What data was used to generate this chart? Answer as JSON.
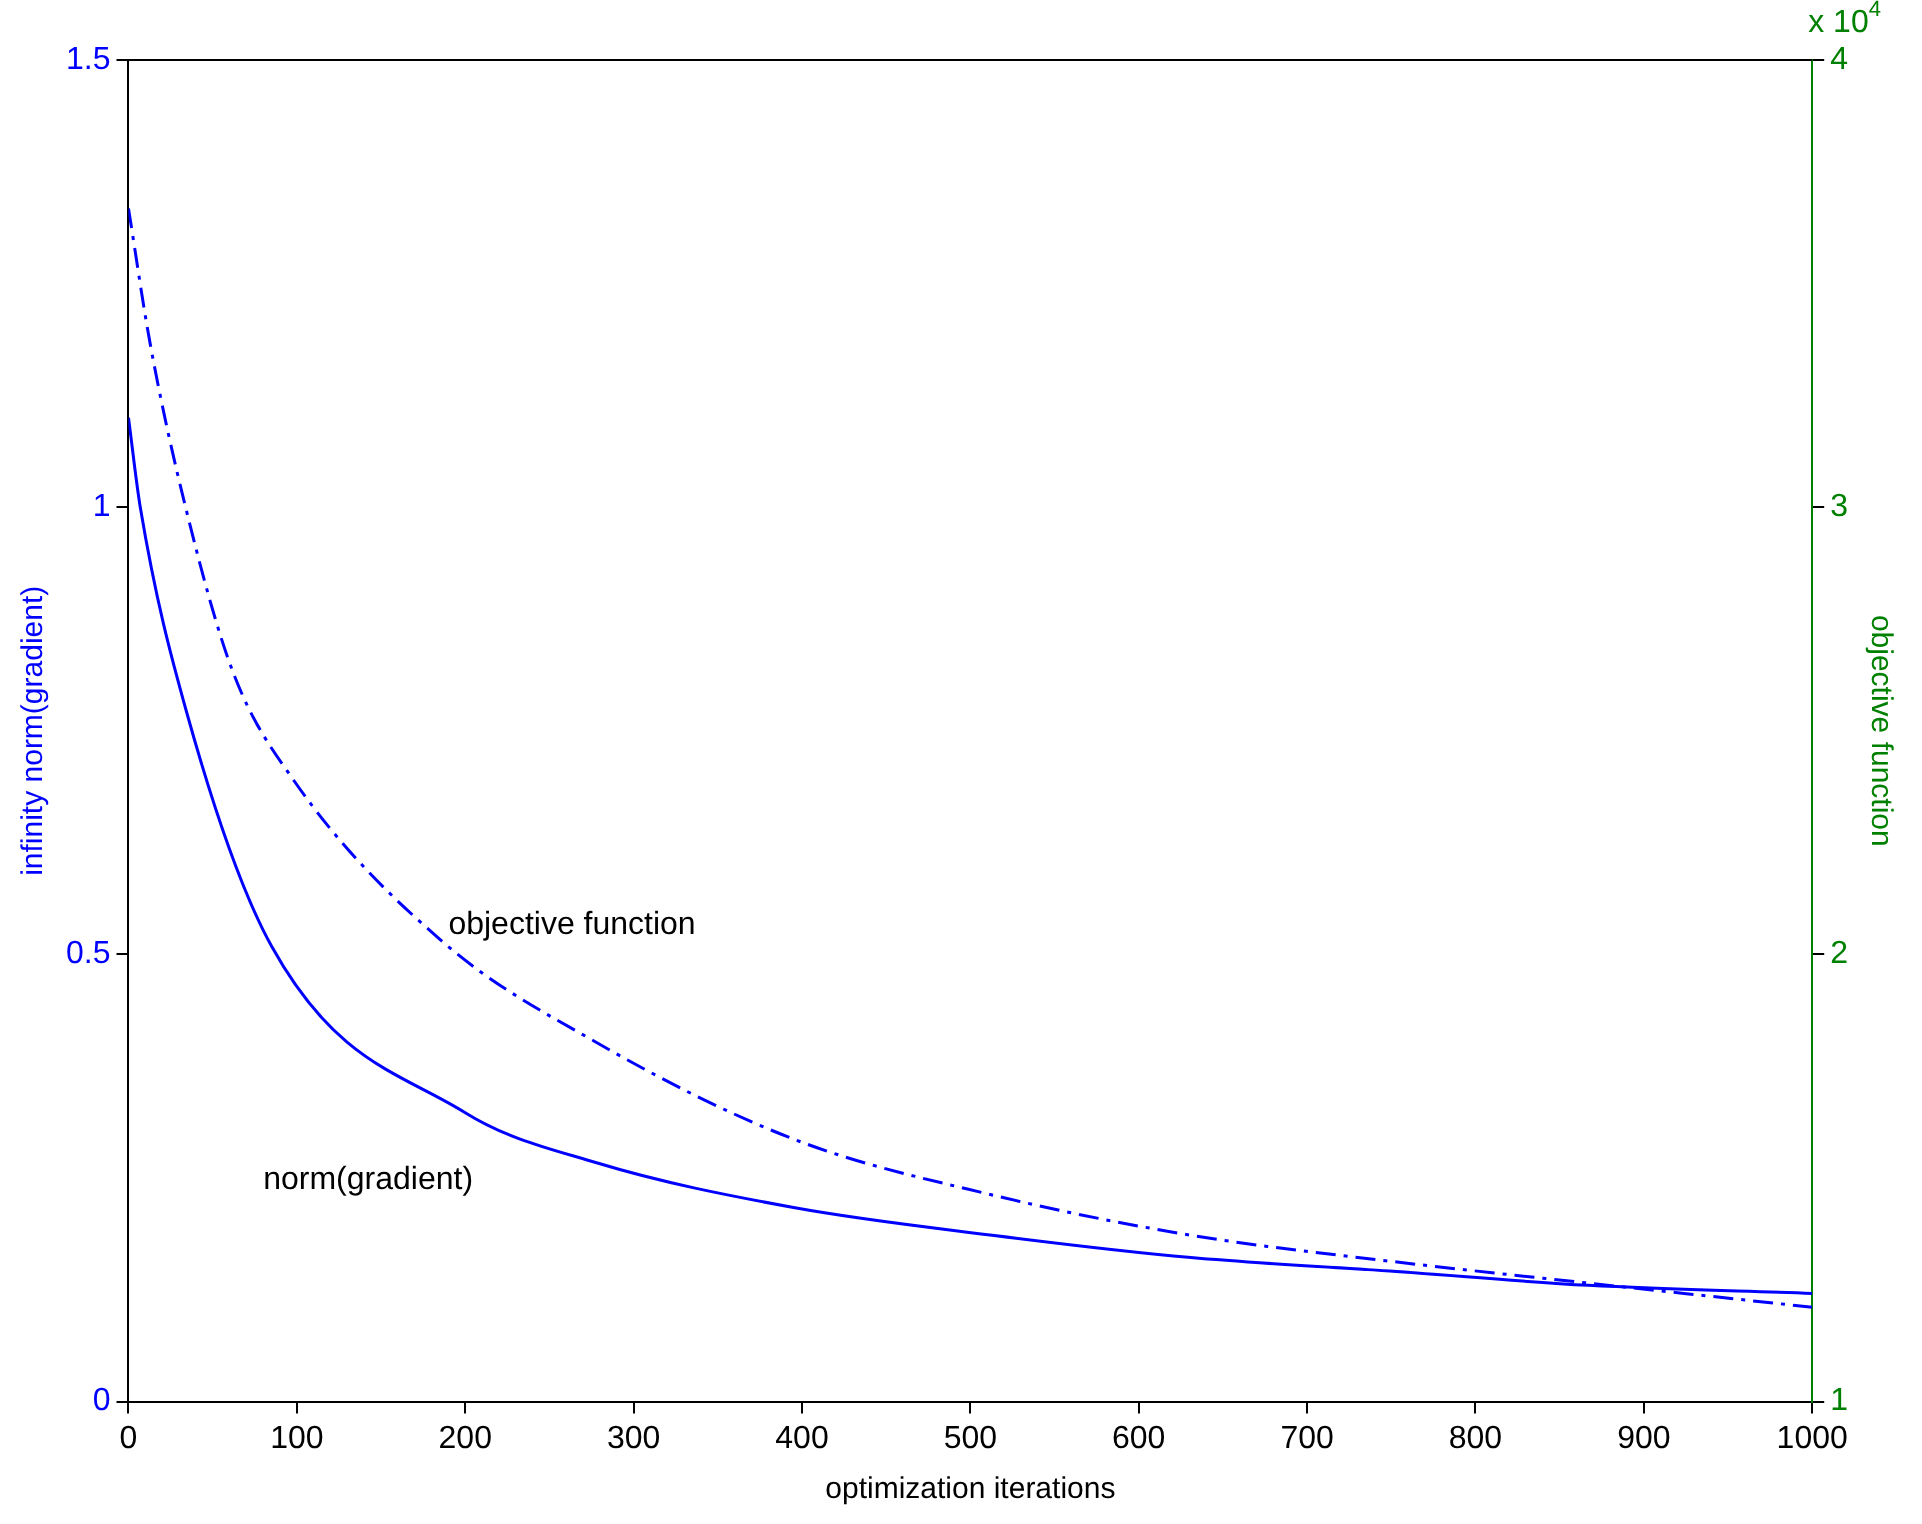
{
  "chart_data": {
    "type": "line",
    "xlabel": "optimization iterations",
    "ylabel": "infinity norm(gradient)",
    "y2label": "objective function",
    "xlim": [
      0,
      1000
    ],
    "xticks": [
      0,
      100,
      200,
      300,
      400,
      500,
      600,
      700,
      800,
      900,
      1000
    ],
    "ylim": [
      0,
      1.5
    ],
    "yticks": [
      0,
      0.5,
      1,
      1.5
    ],
    "y2lim": [
      1,
      4
    ],
    "y2ticks": [
      1,
      2,
      3,
      4
    ],
    "annotations": [
      "x 10$^{4}$"
    ],
    "grid": false,
    "legend": false,
    "marker": "none",
    "series": [
      {
        "name": "norm(gradient)",
        "color": "#0000ff",
        "line_style": "solid",
        "x": [
          0,
          7,
          34.5,
          85,
          200,
          278,
          395,
          513,
          631,
          749,
          867,
          1000
        ],
        "values": [
          1.1,
          1.0,
          0.771,
          0.509,
          0.323,
          0.267,
          0.217,
          0.186,
          0.161,
          0.146,
          0.13,
          0.121
        ]
      },
      {
        "name": "objective function",
        "color": "#0000ff",
        "line_style": "dashed",
        "axis": "y2",
        "x": [
          0,
          13,
          34.5,
          62,
          98,
          187,
          278,
          395,
          513,
          631,
          749,
          867,
          1000
        ],
        "values": [
          3.668,
          3.363,
          2.991,
          2.632,
          2.39,
          2.027,
          1.803,
          1.587,
          1.462,
          1.372,
          1.314,
          1.265,
          1.211
        ]
      }
    ]
  }
}
